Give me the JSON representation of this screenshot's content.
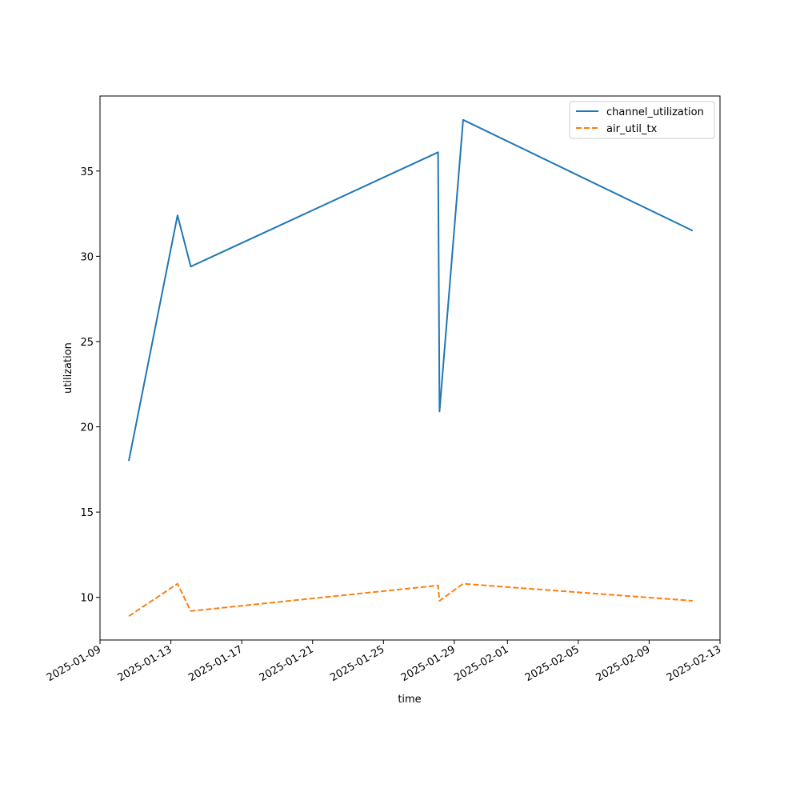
{
  "chart_data": {
    "type": "line",
    "title": "",
    "xlabel": "time",
    "ylabel": "utilization",
    "x_type": "date",
    "xlim": [
      "2025-01-09",
      "2025-02-13"
    ],
    "ylim": [
      7.5,
      39.4
    ],
    "x_ticks": [
      "2025-01-09",
      "2025-01-13",
      "2025-01-17",
      "2025-01-21",
      "2025-01-25",
      "2025-01-29",
      "2025-02-01",
      "2025-02-05",
      "2025-02-09",
      "2025-02-13"
    ],
    "y_ticks": [
      10,
      15,
      20,
      25,
      30,
      35
    ],
    "grid": false,
    "legend_position": "upper right",
    "x": [
      "2025-01-10T15:00",
      "2025-01-13T09:00",
      "2025-01-14T03:00",
      "2025-01-28T02:00",
      "2025-01-28T04:00",
      "2025-01-29T12:00",
      "2025-02-11T11:00"
    ],
    "series": [
      {
        "name": "channel_utilization",
        "color": "#1f77b4",
        "style": "solid",
        "values": [
          18.0,
          32.4,
          29.4,
          36.1,
          20.9,
          38.0,
          31.5
        ]
      },
      {
        "name": "air_util_tx",
        "color": "#ff7f0e",
        "style": "dashed",
        "values": [
          8.9,
          10.8,
          9.2,
          10.7,
          9.8,
          10.8,
          9.8
        ]
      }
    ]
  }
}
